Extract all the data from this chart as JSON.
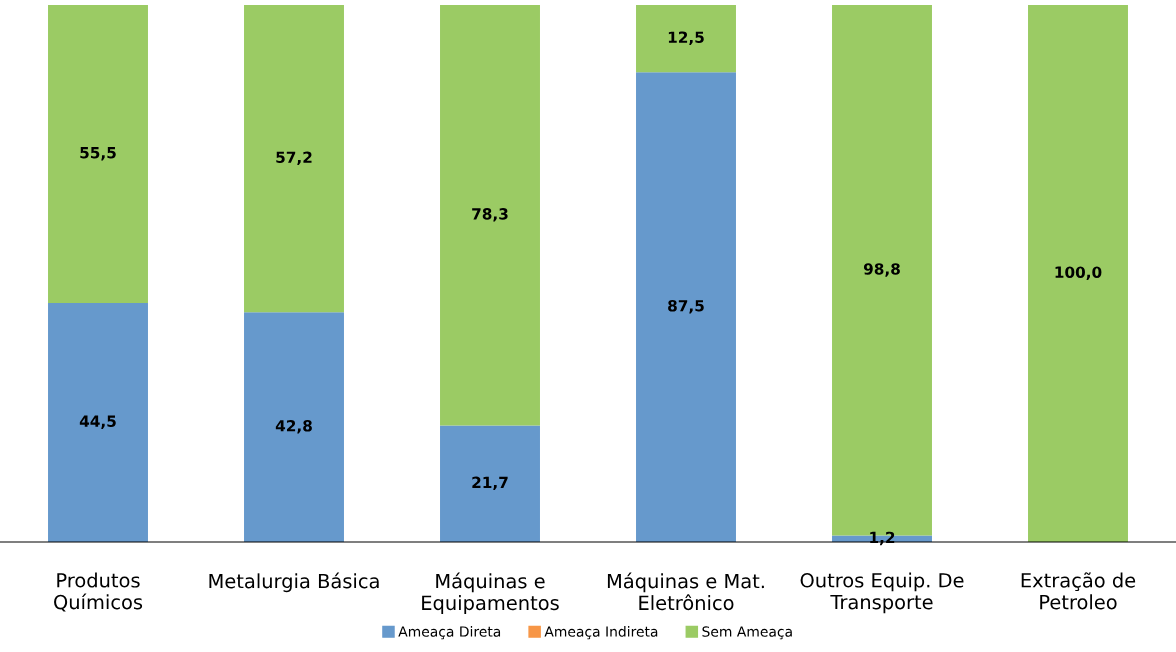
{
  "chart_data": {
    "type": "bar",
    "stacked": true,
    "legend": "bottom",
    "categories": [
      "Produtos\nQuímicos",
      "Metalurgia Básica",
      "Máquinas e\nEquipamentos",
      "Máquinas e Mat.\nEletrônico",
      "Outros Equip. De\nTransporte",
      "Extração de\nPetroleo"
    ],
    "series": [
      {
        "name": "Ameaça Direta",
        "color": "#6699cc",
        "values": [
          44.5,
          42.8,
          21.7,
          87.5,
          1.2,
          0
        ],
        "value_labels": [
          "44,5",
          "42,8",
          "21,7",
          "87,5",
          "1,2",
          null
        ]
      },
      {
        "name": "Ameaça Indireta",
        "color": "#f79646",
        "values": [
          0,
          0,
          0,
          0,
          0,
          0
        ],
        "value_labels": [
          null,
          null,
          null,
          null,
          null,
          null
        ]
      },
      {
        "name": "Sem Ameaça",
        "color": "#9bcb64",
        "values": [
          55.5,
          57.2,
          78.3,
          12.5,
          98.8,
          100.0
        ],
        "value_labels": [
          "55,5",
          "57,2",
          "78,3",
          "12,5",
          "98,8",
          "100,0"
        ]
      }
    ],
    "grid": false
  }
}
